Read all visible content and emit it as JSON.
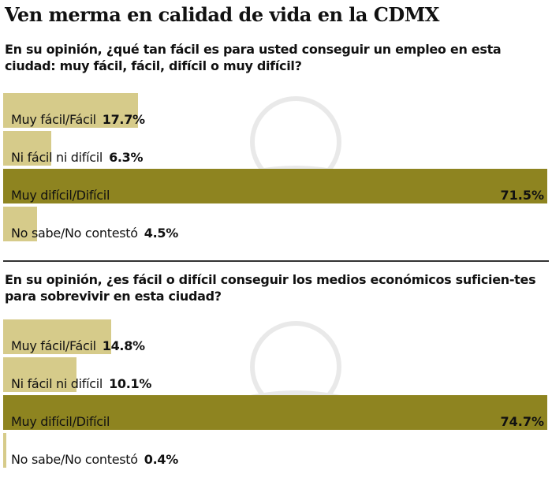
{
  "title": "Ven merma en calidad de vida en la CDMX",
  "colors": {
    "light": "#d6cb8a",
    "dark": "#8e8420"
  },
  "chart_data": [
    {
      "type": "bar",
      "orientation": "horizontal",
      "title": "En su opinión, ¿qué tan fácil es para usted conseguir un empleo en esta ciudad: muy fácil, fácil, difícil o muy difícil?",
      "categories": [
        "Muy fácil/Fácil",
        "Ni fácil ni difícil",
        "Muy difícil/Difícil",
        "No sabe/No contestó"
      ],
      "values": [
        17.7,
        6.3,
        71.5,
        4.5
      ],
      "labels": [
        "17.7%",
        "6.3%",
        "71.5%",
        "4.5%"
      ]
    },
    {
      "type": "bar",
      "orientation": "horizontal",
      "title": "En su opinión, ¿es fácil o difícil conseguir los medios económicos suficien-tes para sobrevivir en esta ciudad?",
      "categories": [
        "Muy fácil/Fácil",
        "Ni fácil ni difícil",
        "Muy difícil/Difícil",
        "No sabe/No contestó"
      ],
      "values": [
        14.8,
        10.1,
        74.7,
        0.4
      ],
      "labels": [
        "14.8%",
        "10.1%",
        "74.7%",
        "0.4%"
      ]
    }
  ]
}
